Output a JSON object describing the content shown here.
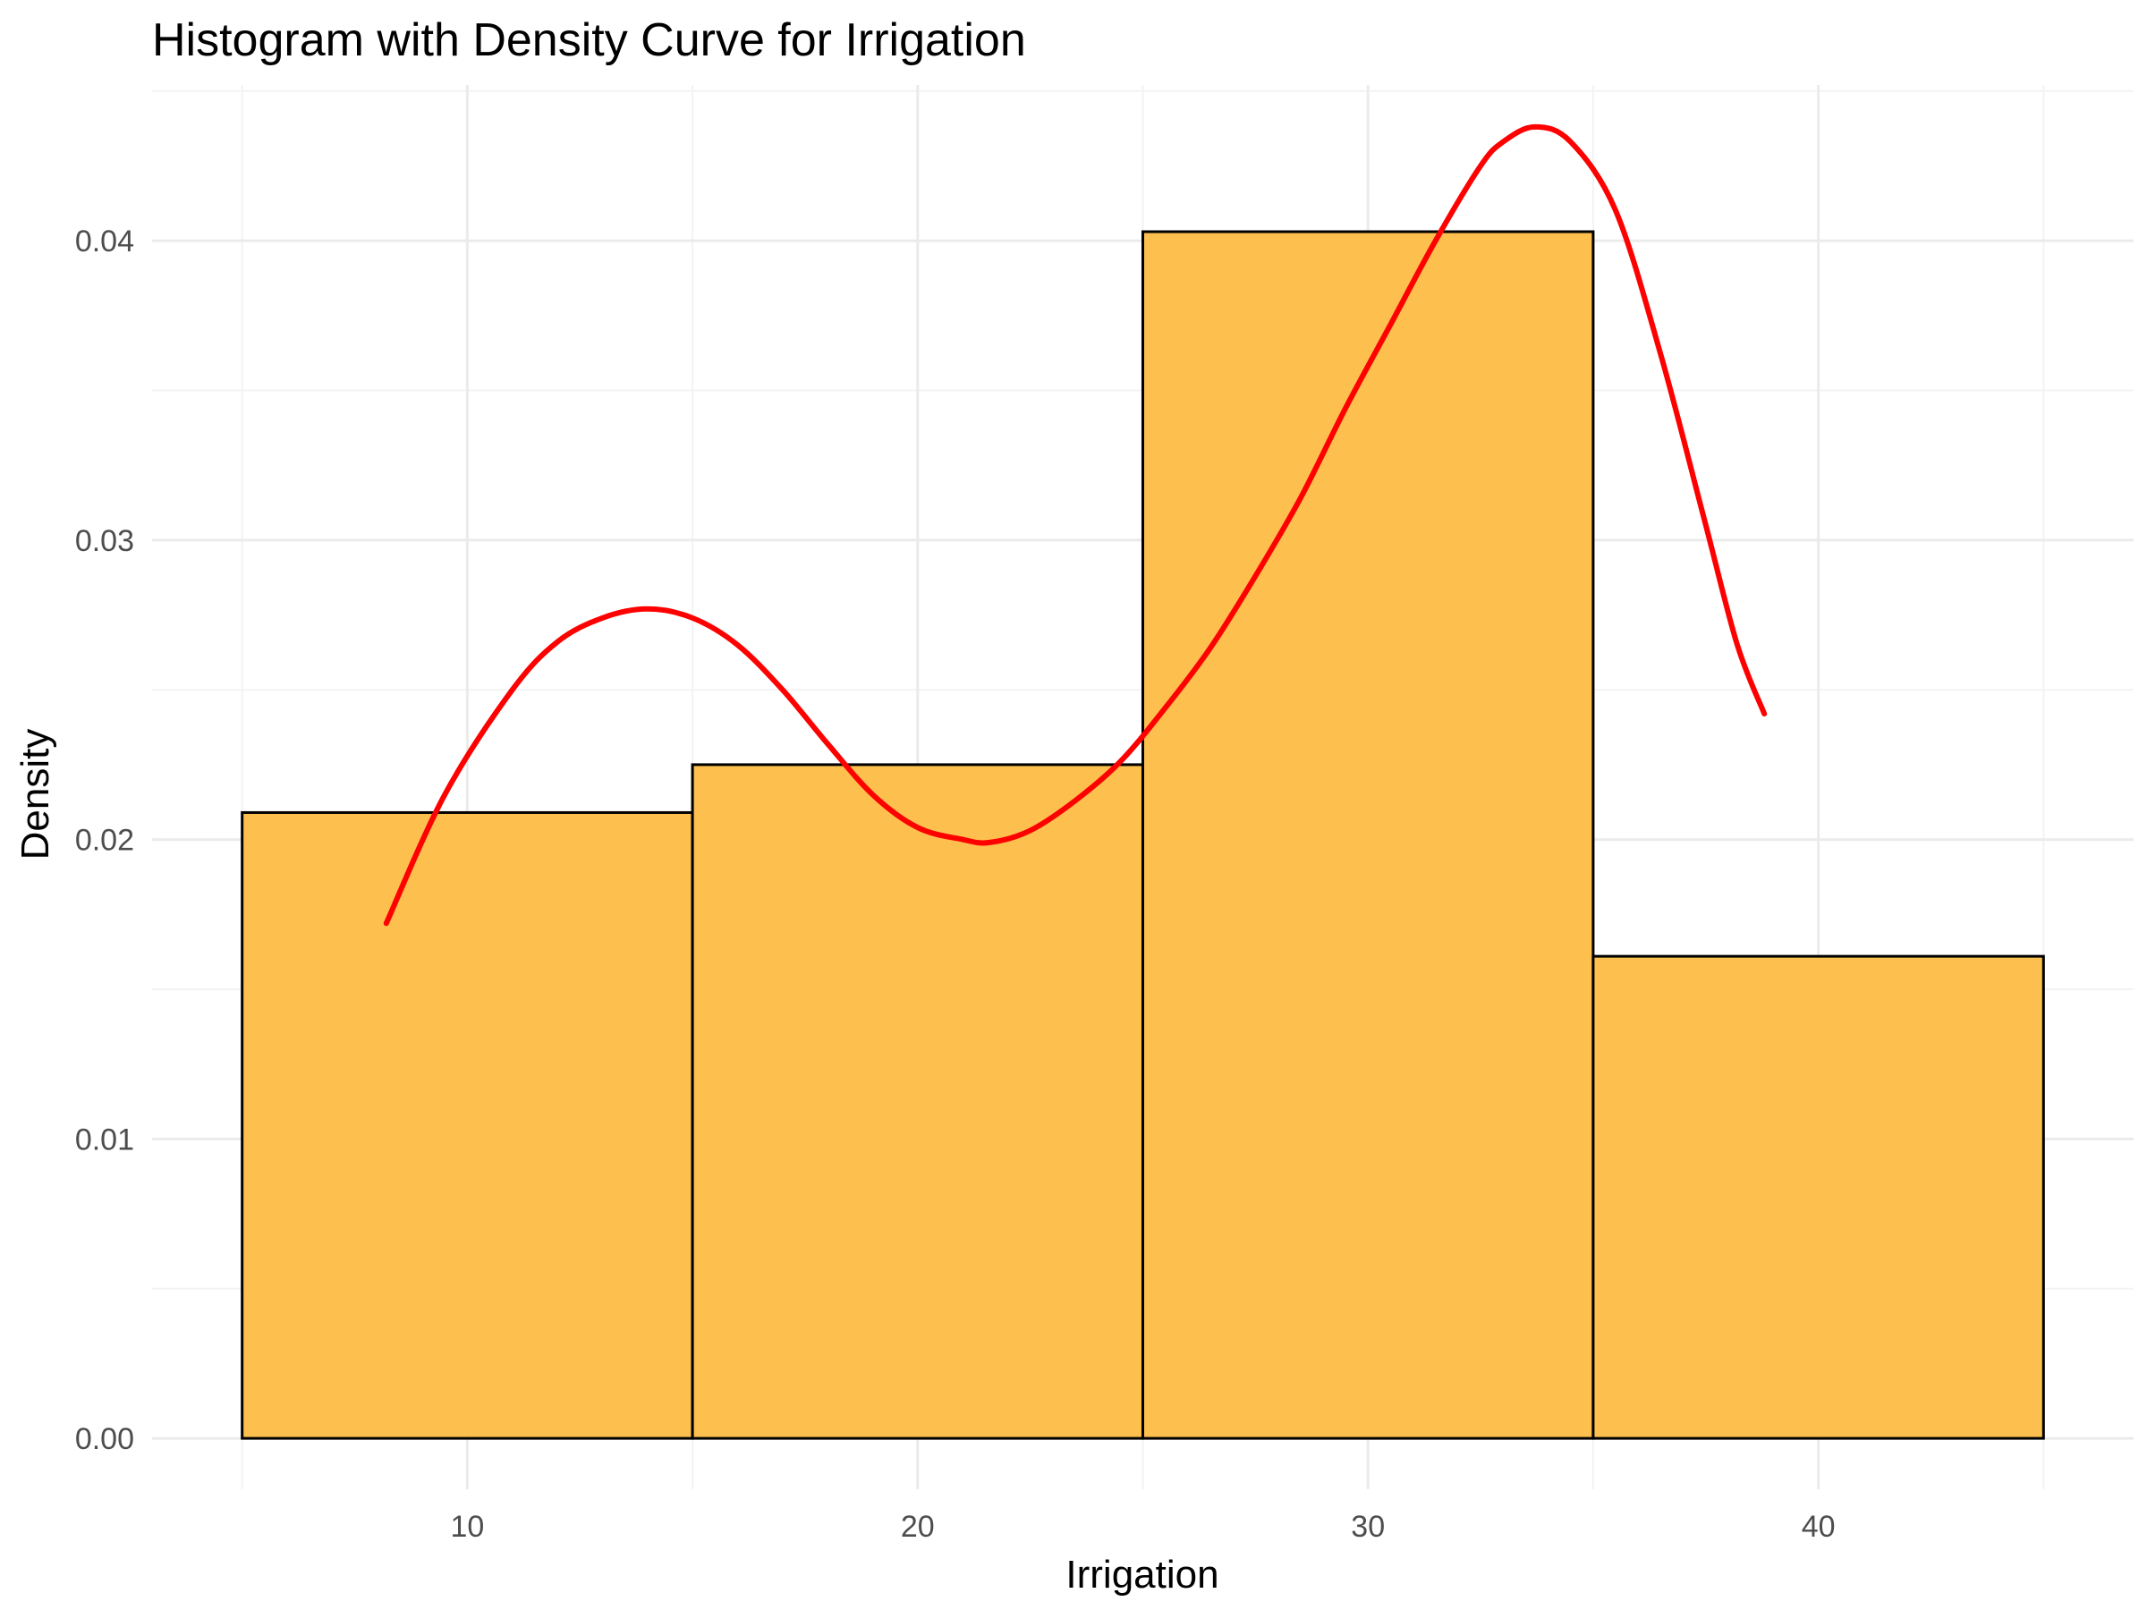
{
  "chart_data": {
    "type": "bar",
    "title": "Histogram with Density Curve for Irrigation",
    "xlabel": "Irrigation",
    "ylabel": "Density",
    "xlim": [
      3.0,
      47.0
    ],
    "ylim": [
      -0.0017,
      0.0452
    ],
    "x_ticks": [
      10,
      20,
      30,
      40
    ],
    "x_tick_labels": [
      "10",
      "20",
      "30",
      "40"
    ],
    "x_minor_ticks": [
      5,
      15,
      25,
      35,
      45
    ],
    "y_ticks": [
      0.0,
      0.01,
      0.02,
      0.03,
      0.04
    ],
    "y_tick_labels": [
      "0.00",
      "0.01",
      "0.02",
      "0.03",
      "0.04"
    ],
    "y_minor_ticks": [
      0.005,
      0.015,
      0.025,
      0.035,
      0.045
    ],
    "grid": true,
    "legend": "none",
    "bins": [
      {
        "x0": 5,
        "x1": 15,
        "value": 0.0209
      },
      {
        "x0": 15,
        "x1": 25,
        "value": 0.0225
      },
      {
        "x0": 25,
        "x1": 35,
        "value": 0.0403
      },
      {
        "x0": 35,
        "x1": 45,
        "value": 0.0161
      }
    ],
    "density_curve": {
      "x": [
        8.2,
        9.5,
        11,
        12,
        13,
        14,
        15,
        16,
        17,
        18,
        19,
        20,
        21,
        21.6,
        22.5,
        23.5,
        24.5,
        25.5,
        26.5,
        27.5,
        28.5,
        29.5,
        30.5,
        31.5,
        32.5,
        33,
        33.7,
        34.5,
        35.5,
        36.5,
        37.5,
        38.2,
        38.8
      ],
      "y": [
        0.0172,
        0.0215,
        0.025,
        0.0266,
        0.0274,
        0.0277,
        0.0274,
        0.0265,
        0.025,
        0.0232,
        0.0215,
        0.0204,
        0.02,
        0.0199,
        0.0203,
        0.0213,
        0.0226,
        0.0244,
        0.0264,
        0.0288,
        0.0314,
        0.0344,
        0.0372,
        0.04,
        0.0425,
        0.0433,
        0.0438,
        0.0433,
        0.041,
        0.0362,
        0.0305,
        0.0265,
        0.0242
      ]
    },
    "colors": {
      "bar_fill": "#FDBF4E",
      "bar_stroke": "#000000",
      "curve": "#FF0000",
      "grid_major": "#EBEBEB",
      "grid_minor": "#F3F3F3"
    }
  }
}
